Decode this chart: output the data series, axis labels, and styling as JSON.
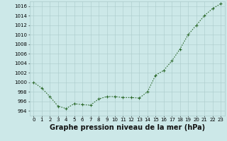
{
  "x": [
    0,
    1,
    2,
    3,
    4,
    5,
    6,
    7,
    8,
    9,
    10,
    11,
    12,
    13,
    14,
    15,
    16,
    17,
    18,
    19,
    20,
    21,
    22,
    23
  ],
  "y": [
    1000,
    998.8,
    997,
    995,
    994.5,
    995.5,
    995.3,
    995.2,
    996.5,
    997,
    997,
    996.8,
    996.8,
    996.7,
    998,
    1001.5,
    1002.5,
    1004.5,
    1007,
    1010,
    1012,
    1014,
    1015.5,
    1016.5
  ],
  "line_color": "#2d6a2d",
  "marker_color": "#2d6a2d",
  "bg_color": "#cce8e8",
  "grid_color": "#aacaca",
  "title": "Graphe pression niveau de la mer (hPa)",
  "ylim": [
    993,
    1017
  ],
  "xlim": [
    -0.5,
    23.5
  ],
  "yticks": [
    994,
    996,
    998,
    1000,
    1002,
    1004,
    1006,
    1008,
    1010,
    1012,
    1014,
    1016
  ],
  "xticks": [
    0,
    1,
    2,
    3,
    4,
    5,
    6,
    7,
    8,
    9,
    10,
    11,
    12,
    13,
    14,
    15,
    16,
    17,
    18,
    19,
    20,
    21,
    22,
    23
  ],
  "xtick_labels": [
    "0",
    "1",
    "2",
    "3",
    "4",
    "5",
    "6",
    "7",
    "8",
    "9",
    "10",
    "11",
    "12",
    "13",
    "14",
    "15",
    "16",
    "17",
    "18",
    "19",
    "20",
    "21",
    "22",
    "23"
  ],
  "title_fontsize": 7,
  "tick_fontsize": 5,
  "line_width": 0.8,
  "marker_size": 2.5
}
